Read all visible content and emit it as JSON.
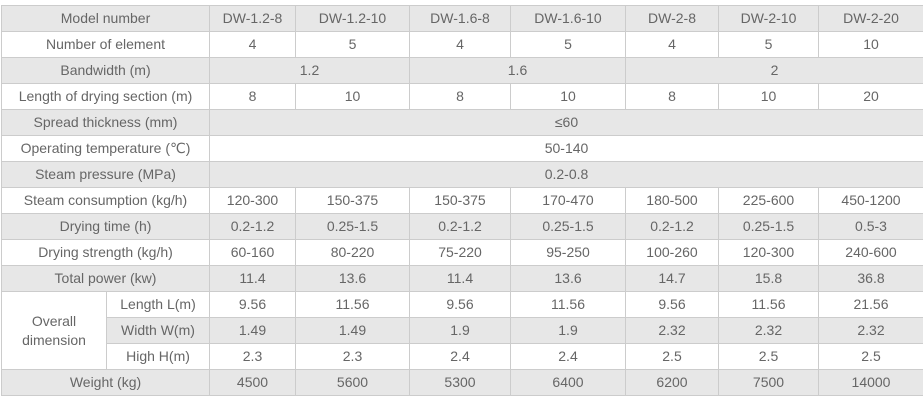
{
  "colors": {
    "row_shade_bg": "#e7e7e7",
    "row_plain_bg": "#ffffff",
    "border": "#cccccc",
    "text": "#666666"
  },
  "chart_data": {
    "type": "table",
    "grid": true,
    "legend": "none",
    "column_headers": [
      "Model number",
      "DW-1.2-8",
      "DW-1.2-10",
      "DW-1.6-8",
      "DW-1.6-10",
      "DW-2-8",
      "DW-2-10",
      "DW-2-20"
    ],
    "rows": [
      {
        "shade": "gray",
        "cells": [
          {
            "t": "Model number",
            "cs": 2,
            "name": "row-label"
          },
          {
            "t": "DW-1.2-8",
            "name": "column-header"
          },
          {
            "t": "DW-1.2-10",
            "name": "column-header"
          },
          {
            "t": "DW-1.6-8",
            "name": "column-header"
          },
          {
            "t": "DW-1.6-10",
            "name": "column-header"
          },
          {
            "t": "DW-2-8",
            "name": "column-header"
          },
          {
            "t": "DW-2-10",
            "name": "column-header"
          },
          {
            "t": "DW-2-20",
            "name": "column-header"
          }
        ]
      },
      {
        "shade": "white",
        "cells": [
          {
            "t": "Number of element",
            "cs": 2,
            "name": "row-label"
          },
          {
            "t": "4"
          },
          {
            "t": "5"
          },
          {
            "t": "4"
          },
          {
            "t": "5"
          },
          {
            "t": "4"
          },
          {
            "t": "5"
          },
          {
            "t": "10"
          }
        ]
      },
      {
        "shade": "gray",
        "cells": [
          {
            "t": "Bandwidth (m)",
            "cs": 2,
            "name": "row-label"
          },
          {
            "t": "1.2",
            "cs": 2
          },
          {
            "t": "1.6",
            "cs": 2
          },
          {
            "t": "2",
            "cs": 3
          }
        ]
      },
      {
        "shade": "white",
        "cells": [
          {
            "t": "Length of drying section (m)",
            "cs": 2,
            "name": "row-label"
          },
          {
            "t": "8"
          },
          {
            "t": "10"
          },
          {
            "t": "8"
          },
          {
            "t": "10"
          },
          {
            "t": "8"
          },
          {
            "t": "10"
          },
          {
            "t": "20"
          }
        ]
      },
      {
        "shade": "gray",
        "cells": [
          {
            "t": "Spread thickness (mm)",
            "cs": 2,
            "name": "row-label"
          },
          {
            "t": "≤60",
            "cs": 7
          }
        ]
      },
      {
        "shade": "white",
        "cells": [
          {
            "t": "Operating temperature (℃)",
            "cs": 2,
            "name": "row-label"
          },
          {
            "t": "50-140",
            "cs": 7
          }
        ]
      },
      {
        "shade": "gray",
        "cells": [
          {
            "t": "Steam pressure (MPa)",
            "cs": 2,
            "name": "row-label"
          },
          {
            "t": "0.2-0.8",
            "cs": 7
          }
        ]
      },
      {
        "shade": "white",
        "cells": [
          {
            "t": "Steam consumption (kg/h)",
            "cs": 2,
            "name": "row-label"
          },
          {
            "t": "120-300"
          },
          {
            "t": "150-375"
          },
          {
            "t": "150-375"
          },
          {
            "t": "170-470"
          },
          {
            "t": "180-500"
          },
          {
            "t": "225-600"
          },
          {
            "t": "450-1200"
          }
        ]
      },
      {
        "shade": "gray",
        "cells": [
          {
            "t": "Drying time (h)",
            "cs": 2,
            "name": "row-label"
          },
          {
            "t": "0.2-1.2"
          },
          {
            "t": "0.25-1.5"
          },
          {
            "t": "0.2-1.2"
          },
          {
            "t": "0.25-1.5"
          },
          {
            "t": "0.2-1.2"
          },
          {
            "t": "0.25-1.5"
          },
          {
            "t": "0.5-3"
          }
        ]
      },
      {
        "shade": "white",
        "cells": [
          {
            "t": "Drying strength (kg/h)",
            "cs": 2,
            "name": "row-label"
          },
          {
            "t": "60-160"
          },
          {
            "t": "80-220"
          },
          {
            "t": "75-220"
          },
          {
            "t": "95-250"
          },
          {
            "t": "100-260"
          },
          {
            "t": "120-300"
          },
          {
            "t": "240-600"
          }
        ]
      },
      {
        "shade": "gray",
        "cells": [
          {
            "t": "Total power (kw)",
            "cs": 2,
            "name": "row-label"
          },
          {
            "t": "11.4"
          },
          {
            "t": "13.6"
          },
          {
            "t": "11.4"
          },
          {
            "t": "13.6"
          },
          {
            "t": "14.7"
          },
          {
            "t": "15.8"
          },
          {
            "t": "36.8"
          }
        ]
      },
      {
        "shade": "white",
        "cells": [
          {
            "t": "Overall dimension",
            "rs": 3,
            "name": "row-label"
          },
          {
            "t": "Length L(m)",
            "name": "row-sublabel"
          },
          {
            "t": "9.56"
          },
          {
            "t": "11.56"
          },
          {
            "t": "9.56"
          },
          {
            "t": "11.56"
          },
          {
            "t": "9.56"
          },
          {
            "t": "11.56"
          },
          {
            "t": "21.56"
          }
        ]
      },
      {
        "shade": "gray",
        "cells": [
          {
            "t": "Width W(m)",
            "name": "row-sublabel"
          },
          {
            "t": "1.49"
          },
          {
            "t": "1.49"
          },
          {
            "t": "1.9"
          },
          {
            "t": "1.9"
          },
          {
            "t": "2.32"
          },
          {
            "t": "2.32"
          },
          {
            "t": "2.32"
          }
        ]
      },
      {
        "shade": "white",
        "cells": [
          {
            "t": "High H(m)",
            "name": "row-sublabel"
          },
          {
            "t": "2.3"
          },
          {
            "t": "2.3"
          },
          {
            "t": "2.4"
          },
          {
            "t": "2.4"
          },
          {
            "t": "2.5"
          },
          {
            "t": "2.5"
          },
          {
            "t": "2.5"
          }
        ]
      },
      {
        "shade": "gray",
        "cells": [
          {
            "t": "Weight (kg)",
            "cs": 2,
            "name": "row-label"
          },
          {
            "t": "4500"
          },
          {
            "t": "5600"
          },
          {
            "t": "5300"
          },
          {
            "t": "6400"
          },
          {
            "t": "6200"
          },
          {
            "t": "7500"
          },
          {
            "t": "14000"
          }
        ]
      }
    ]
  }
}
